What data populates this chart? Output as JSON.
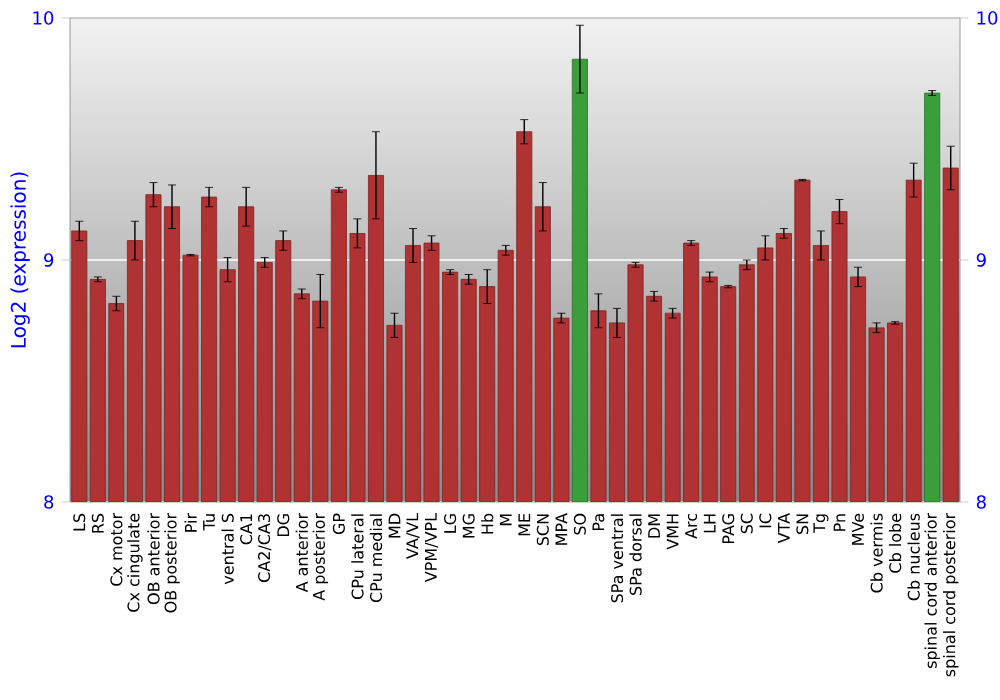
{
  "chart_data": {
    "type": "bar",
    "ylabel": "Log2 (expression)",
    "categories": [
      "LS",
      "RS",
      "Cx motor",
      "Cx cingulate",
      "OB anterior",
      "OB posterior",
      "Pir",
      "Tu",
      "ventral S",
      "CA1",
      "CA2/CA3",
      "DG",
      "A anterior",
      "A posterior",
      "GP",
      "CPu lateral",
      "CPu medial",
      "MD",
      "VA/VL",
      "VPM/VPL",
      "LG",
      "MG",
      "Hb",
      "M",
      "ME",
      "SCN",
      "MPA",
      "SO",
      "Pa",
      "SPa ventral",
      "SPa dorsal",
      "DM",
      "VMH",
      "Arc",
      "LH",
      "PAG",
      "SC",
      "IC",
      "VTA",
      "SN",
      "Tg",
      "Pn",
      "MVe",
      "Cb vermis",
      "Cb lobe",
      "Cb nucleus",
      "spinal cord anterior",
      "spinal cord posterior"
    ],
    "values": [
      9.12,
      8.92,
      8.82,
      9.08,
      9.27,
      9.22,
      9.02,
      9.26,
      8.96,
      9.22,
      8.99,
      9.08,
      8.86,
      8.83,
      9.29,
      9.11,
      9.35,
      8.73,
      9.06,
      9.07,
      8.95,
      8.92,
      8.89,
      9.04,
      9.53,
      9.22,
      8.76,
      9.83,
      8.79,
      8.74,
      8.98,
      8.85,
      8.78,
      9.07,
      8.93,
      8.89,
      8.98,
      9.05,
      9.11,
      9.33,
      9.06,
      9.2,
      8.93,
      8.72,
      8.74,
      9.33,
      9.69,
      9.38
    ],
    "errors": [
      0.04,
      0.01,
      0.03,
      0.08,
      0.05,
      0.09,
      0.003,
      0.04,
      0.05,
      0.08,
      0.02,
      0.04,
      0.02,
      0.11,
      0.01,
      0.06,
      0.18,
      0.05,
      0.07,
      0.03,
      0.01,
      0.02,
      0.07,
      0.02,
      0.05,
      0.1,
      0.02,
      0.14,
      0.07,
      0.06,
      0.01,
      0.02,
      0.02,
      0.01,
      0.02,
      0.005,
      0.02,
      0.05,
      0.02,
      0.003,
      0.06,
      0.05,
      0.04,
      0.02,
      0.005,
      0.07,
      0.01,
      0.09
    ],
    "colors": [
      "#b03232",
      "#b03232",
      "#b03232",
      "#b03232",
      "#b03232",
      "#b03232",
      "#b03232",
      "#b03232",
      "#b03232",
      "#b03232",
      "#b03232",
      "#b03232",
      "#b03232",
      "#b03232",
      "#b03232",
      "#b03232",
      "#b03232",
      "#b03232",
      "#b03232",
      "#b03232",
      "#b03232",
      "#b03232",
      "#b03232",
      "#b03232",
      "#b03232",
      "#b03232",
      "#b03232",
      "#3a9f3a",
      "#b03232",
      "#b03232",
      "#b03232",
      "#b03232",
      "#b03232",
      "#b03232",
      "#b03232",
      "#b03232",
      "#b03232",
      "#b03232",
      "#b03232",
      "#b03232",
      "#b03232",
      "#b03232",
      "#b03232",
      "#b03232",
      "#b03232",
      "#b03232",
      "#3a9f3a",
      "#b03232"
    ],
    "ylim": [
      8,
      10
    ],
    "yticks": [
      8,
      9,
      10
    ],
    "y2lim": [
      8,
      10
    ],
    "y2ticks": [
      8,
      9,
      10
    ],
    "grid": "y"
  }
}
